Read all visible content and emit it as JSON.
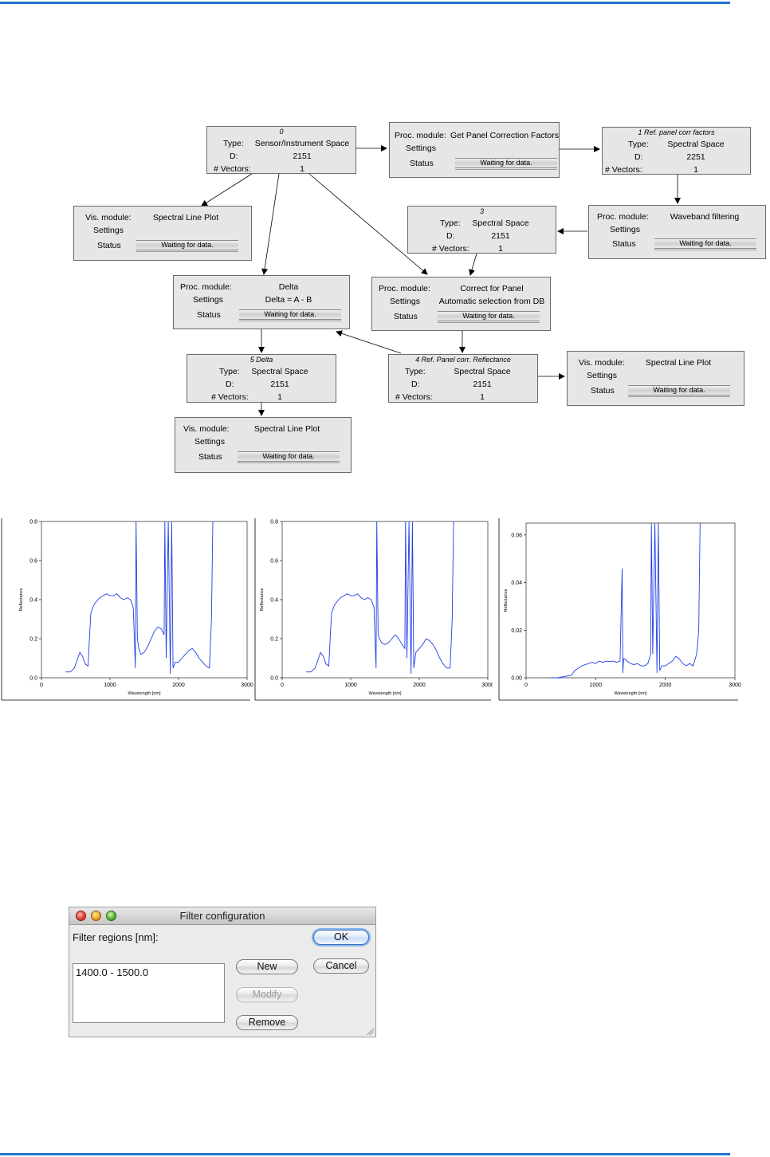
{
  "nodes": {
    "n0": {
      "header": "0",
      "type_label": "Type:",
      "type": "Sensor/Instrument Space",
      "d_label": "D:",
      "d": "2151",
      "vec_label": "# Vectors:",
      "vec": "1"
    },
    "n_getpanel": {
      "module_label": "Proc. module:",
      "module": "Get Panel Correction Factors",
      "settings_label": "Settings",
      "settings": "",
      "status_label": "Status",
      "status": "Waiting for data."
    },
    "n1": {
      "header": "1        Ref. panel corr factors",
      "type_label": "Type:",
      "type": "Spectral Space",
      "d_label": "D:",
      "d": "2251",
      "vec_label": "# Vectors:",
      "vec": "1"
    },
    "n_vis1": {
      "module_label": "Vis. module:",
      "module": "Spectral Line Plot",
      "settings_label": "Settings",
      "settings": "",
      "status_label": "Status",
      "status": "Waiting for data."
    },
    "n3": {
      "header": "3",
      "type_label": "Type:",
      "type": "Spectral Space",
      "d_label": "D:",
      "d": "2151",
      "vec_label": "# Vectors:",
      "vec": "1"
    },
    "n_waveband": {
      "module_label": "Proc. module:",
      "module": "Waveband filtering",
      "settings_label": "Settings",
      "settings": "",
      "status_label": "Status",
      "status": "Waiting for data."
    },
    "n_delta": {
      "module_label": "Proc. module:",
      "module": "Delta",
      "settings_label": "Settings",
      "settings": "Delta = A - B",
      "status_label": "Status",
      "status": "Waiting for data."
    },
    "n_correct": {
      "module_label": "Proc. module:",
      "module": "Correct for Panel",
      "settings_label": "Settings",
      "settings": "Automatic selection from DB",
      "status_label": "Status",
      "status": "Waiting for data."
    },
    "n5": {
      "header": "5        Delta",
      "type_label": "Type:",
      "type": "Spectral Space",
      "d_label": "D:",
      "d": "2151",
      "vec_label": "# Vectors:",
      "vec": "1"
    },
    "n4": {
      "header": "4     Ref. Panel corr. Reflectance",
      "type_label": "Type:",
      "type": "Spectral Space",
      "d_label": "D:",
      "d": "2151",
      "vec_label": "# Vectors:",
      "vec": "1"
    },
    "n_vis2": {
      "module_label": "Vis. module:",
      "module": "Spectral Line Plot",
      "settings_label": "Settings",
      "settings": "",
      "status_label": "Status",
      "status": "Waiting for data."
    },
    "n_vis3": {
      "module_label": "Vis. module:",
      "module": "Spectral Line Plot",
      "settings_label": "Settings",
      "settings": "",
      "status_label": "Status",
      "status": "Waiting for data."
    }
  },
  "chart_data": [
    {
      "type": "line",
      "xlabel": "Wavelength [nm]",
      "ylabel": "Reflectance",
      "xlim": [
        0,
        3000
      ],
      "ylim": [
        0,
        0.8
      ],
      "xticks": [
        "0",
        "1000",
        "2000",
        "3000"
      ],
      "yticks": [
        "0.0",
        "0.2",
        "0.4",
        "0.6",
        "0.8"
      ],
      "color": "#1f3fe6",
      "series": [
        {
          "x": [
            350,
            420,
            480,
            520,
            560,
            600,
            640,
            680,
            700,
            720,
            760,
            800,
            850,
            900,
            950,
            1000,
            1050,
            1100,
            1150,
            1200,
            1250,
            1300,
            1340,
            1370,
            1380,
            1400,
            1420,
            1450,
            1500,
            1550,
            1600,
            1650,
            1700,
            1750,
            1790,
            1800,
            1820,
            1850,
            1880,
            1900,
            1920,
            1950,
            2000,
            2050,
            2100,
            2150,
            2200,
            2250,
            2300,
            2350,
            2400,
            2450,
            2480,
            2500
          ],
          "y": [
            0.03,
            0.03,
            0.05,
            0.09,
            0.13,
            0.11,
            0.07,
            0.06,
            0.2,
            0.33,
            0.37,
            0.39,
            0.41,
            0.42,
            0.43,
            0.42,
            0.42,
            0.43,
            0.41,
            0.4,
            0.41,
            0.4,
            0.36,
            0.05,
            0.8,
            0.2,
            0.15,
            0.12,
            0.13,
            0.16,
            0.2,
            0.24,
            0.26,
            0.25,
            0.22,
            0.8,
            0.1,
            0.8,
            0.02,
            0.8,
            0.05,
            0.08,
            0.08,
            0.1,
            0.12,
            0.14,
            0.15,
            0.13,
            0.1,
            0.08,
            0.06,
            0.05,
            0.3,
            0.8
          ]
        }
      ]
    },
    {
      "type": "line",
      "xlabel": "Wavelength [nm]",
      "ylabel": "Reflectance",
      "xlim": [
        0,
        3000
      ],
      "ylim": [
        0,
        0.8
      ],
      "xticks": [
        "0",
        "1000",
        "2000",
        "3000"
      ],
      "yticks": [
        "0.0",
        "0.2",
        "0.4",
        "0.6",
        "0.8"
      ],
      "color": "#1f3fe6",
      "series": [
        {
          "x": [
            350,
            420,
            480,
            520,
            560,
            600,
            640,
            680,
            700,
            720,
            760,
            800,
            850,
            900,
            950,
            1000,
            1050,
            1100,
            1150,
            1200,
            1250,
            1300,
            1340,
            1370,
            1380,
            1400,
            1420,
            1450,
            1500,
            1550,
            1600,
            1650,
            1700,
            1750,
            1790,
            1800,
            1820,
            1850,
            1880,
            1900,
            1920,
            1950,
            2000,
            2050,
            2100,
            2150,
            2200,
            2250,
            2300,
            2350,
            2400,
            2450,
            2480,
            2500
          ],
          "y": [
            0.03,
            0.03,
            0.05,
            0.09,
            0.13,
            0.11,
            0.07,
            0.06,
            0.2,
            0.33,
            0.37,
            0.39,
            0.41,
            0.42,
            0.43,
            0.42,
            0.42,
            0.43,
            0.41,
            0.4,
            0.41,
            0.4,
            0.36,
            0.05,
            0.8,
            0.22,
            0.2,
            0.18,
            0.17,
            0.18,
            0.2,
            0.22,
            0.2,
            0.17,
            0.15,
            0.8,
            0.1,
            0.8,
            0.02,
            0.8,
            0.05,
            0.13,
            0.15,
            0.17,
            0.2,
            0.19,
            0.17,
            0.14,
            0.1,
            0.07,
            0.05,
            0.05,
            0.3,
            0.8
          ]
        }
      ]
    },
    {
      "type": "line",
      "xlabel": "Wavelength [nm]",
      "ylabel": "Reflectance",
      "xlim": [
        0,
        3000
      ],
      "ylim": [
        0,
        0.065
      ],
      "xticks": [
        "0",
        "1000",
        "2000",
        "3000"
      ],
      "yticks": [
        "0.00",
        "0.02",
        "0.04",
        "0.06"
      ],
      "color": "#1f3fe6",
      "series": [
        {
          "x": [
            350,
            450,
            550,
            650,
            700,
            750,
            800,
            850,
            900,
            950,
            1000,
            1050,
            1100,
            1150,
            1200,
            1250,
            1300,
            1350,
            1380,
            1390,
            1400,
            1420,
            1450,
            1500,
            1550,
            1600,
            1650,
            1700,
            1750,
            1790,
            1800,
            1820,
            1850,
            1880,
            1900,
            1920,
            1950,
            2000,
            2050,
            2100,
            2150,
            2200,
            2250,
            2300,
            2350,
            2400,
            2450,
            2480,
            2500
          ],
          "y": [
            0.0,
            0.0,
            0.0005,
            0.001,
            0.003,
            0.004,
            0.005,
            0.0055,
            0.006,
            0.0065,
            0.006,
            0.007,
            0.0065,
            0.007,
            0.0068,
            0.007,
            0.0065,
            0.007,
            0.046,
            0.002,
            0.008,
            0.008,
            0.007,
            0.006,
            0.0055,
            0.006,
            0.005,
            0.005,
            0.006,
            0.01,
            0.065,
            0.01,
            0.065,
            0.002,
            0.065,
            0.003,
            0.005,
            0.005,
            0.006,
            0.007,
            0.009,
            0.008,
            0.006,
            0.005,
            0.006,
            0.005,
            0.01,
            0.02,
            0.065
          ]
        }
      ]
    }
  ],
  "dialog": {
    "title": "Filter configuration",
    "label": "Filter regions [nm]:",
    "items": [
      "1400.0 - 1500.0"
    ],
    "ok": "OK",
    "cancel": "Cancel",
    "new": "New",
    "modify": "Modify",
    "remove": "Remove"
  }
}
